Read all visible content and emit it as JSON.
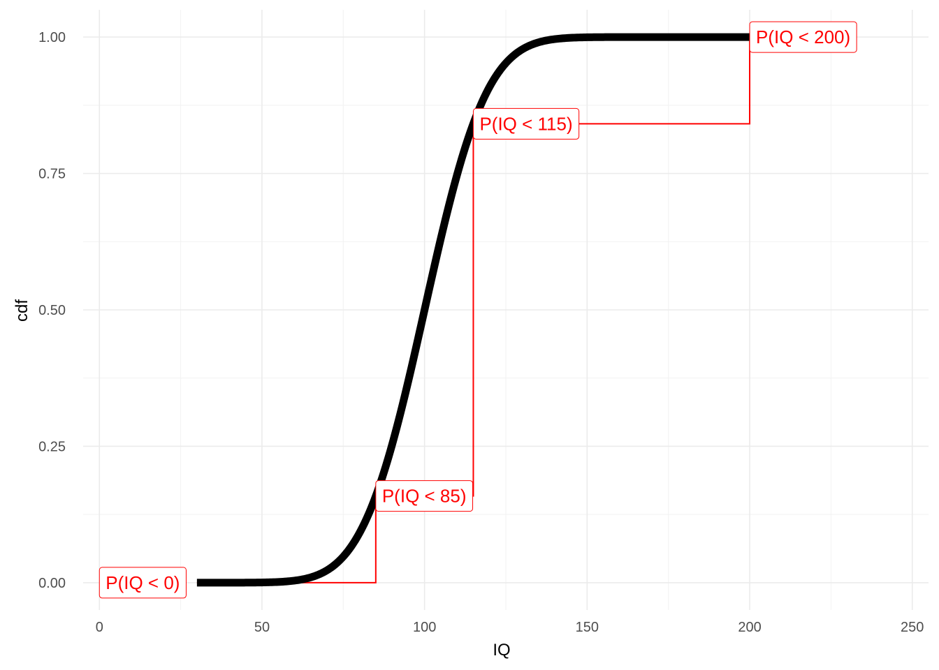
{
  "chart_data": {
    "type": "line",
    "title": "",
    "xlabel": "IQ",
    "ylabel": "cdf",
    "xlim": [
      -5,
      255
    ],
    "ylim": [
      -0.05,
      1.05
    ],
    "x_ticks": [
      0,
      50,
      100,
      150,
      200,
      250
    ],
    "x_tick_labels": [
      "0",
      "50",
      "100",
      "150",
      "200",
      "250"
    ],
    "y_ticks": [
      0,
      0.25,
      0.5,
      0.75,
      1.0
    ],
    "y_tick_labels": [
      "0.00",
      "0.25",
      "0.50",
      "0.75",
      "1.00"
    ],
    "grid": true,
    "series": [
      {
        "distribution": "normal cdf",
        "mean": 100,
        "sd": 15,
        "x_range": [
          30,
          200
        ],
        "color": "#000000"
      }
    ],
    "annotations": [
      {
        "label": "P(IQ < 0)",
        "x": 0,
        "y": 0.0
      },
      {
        "label": "P(IQ < 85)",
        "x": 85,
        "y": 0.159
      },
      {
        "label": "P(IQ < 115)",
        "x": 115,
        "y": 0.841
      },
      {
        "label": "P(IQ < 200)",
        "x": 200,
        "y": 1.0
      }
    ],
    "annotation_color": "#ff0000",
    "step_path": [
      [
        30,
        0.0
      ],
      [
        85,
        0.0
      ],
      [
        85,
        0.159
      ],
      [
        115,
        0.159
      ],
      [
        115,
        0.841
      ],
      [
        200,
        0.841
      ],
      [
        200,
        1.0
      ]
    ]
  }
}
